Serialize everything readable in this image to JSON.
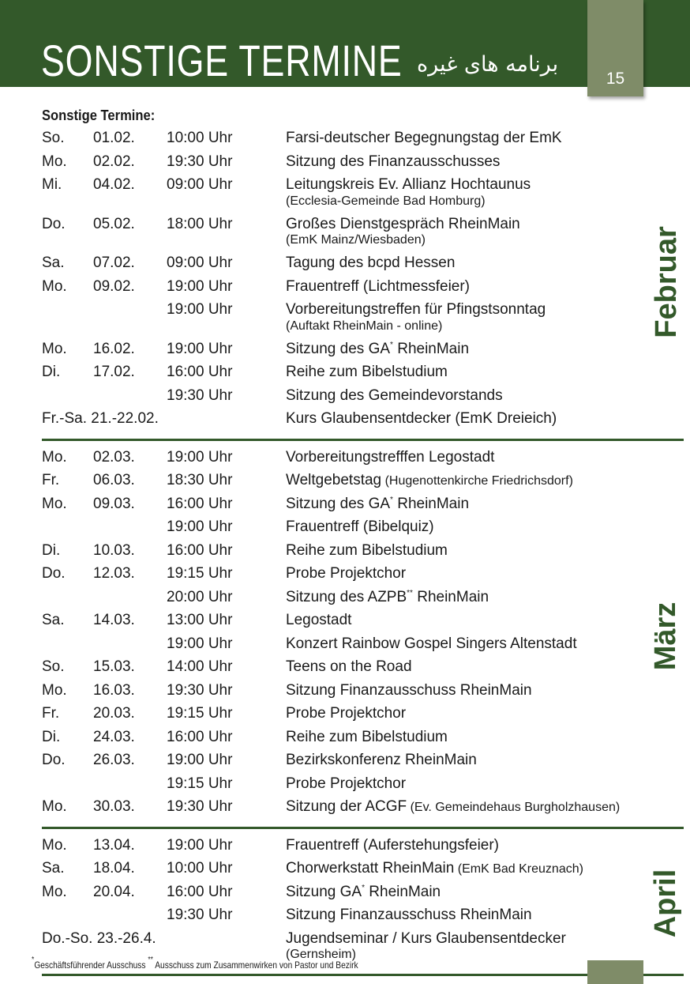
{
  "header": {
    "title": "SONSTIGE TERMINE",
    "title_farsi": "برنامه های غیره",
    "page_number": "15"
  },
  "subtitle": "Sonstige Termine:",
  "sections": [
    {
      "month": "Februar",
      "rows": [
        {
          "day": "So.",
          "date": "01.02.",
          "time": "10:00 Uhr",
          "event": "Farsi-deutscher Begegnungstag der EmK"
        },
        {
          "day": "Mo.",
          "date": "02.02.",
          "time": "19:30 Uhr",
          "event": "Sitzung des Finanzausschusses"
        },
        {
          "day": "Mi.",
          "date": "04.02.",
          "time": "09:00 Uhr",
          "event": "Leitungskreis Ev. Allianz Hochtaunus",
          "sub": "(Ecclesia-Gemeinde Bad Homburg)"
        },
        {
          "day": "Do.",
          "date": "05.02.",
          "time": "18:00 Uhr",
          "event": "Großes Dienstgespräch RheinMain",
          "sub": "(EmK Mainz/Wiesbaden)"
        },
        {
          "day": "Sa.",
          "date": "07.02.",
          "time": "09:00 Uhr",
          "event": "Tagung des bcpd Hessen"
        },
        {
          "day": "Mo.",
          "date": "09.02.",
          "time": "19:00 Uhr",
          "event": "Frauentreff (Lichtmessfeier)"
        },
        {
          "day": "",
          "date": "",
          "time": "19:00 Uhr",
          "event": "Vorbereitungstreffen für Pfingstsonntag",
          "sub": "(Auftakt RheinMain - online)"
        },
        {
          "day": "Mo.",
          "date": "16.02.",
          "time": "19:00 Uhr",
          "event": "Sitzung des GA",
          "sup": "*",
          "event_rest": " RheinMain"
        },
        {
          "day": "Di.",
          "date": "17.02.",
          "time": "16:00 Uhr",
          "event": "Reihe zum Bibelstudium"
        },
        {
          "day": "",
          "date": "",
          "time": "19:30 Uhr",
          "event": "Sitzung des Gemeindevorstands"
        },
        {
          "day": "Fr.-Sa. 21.-22.02.",
          "date": "",
          "time": "",
          "event": "Kurs Glaubensentdecker (EmK Dreieich)"
        }
      ]
    },
    {
      "month": "März",
      "rows": [
        {
          "day": "Mo.",
          "date": "02.03.",
          "time": "19:00 Uhr",
          "event": "Vorbereitungstrefffen Legostadt"
        },
        {
          "day": "Fr.",
          "date": "06.03.",
          "time": "18:30 Uhr",
          "event": "Weltgebetstag",
          "note": " (Hugenottenkirche Friedrichsdorf)"
        },
        {
          "day": "Mo.",
          "date": "09.03.",
          "time": "16:00 Uhr",
          "event": "Sitzung des GA",
          "sup": "*",
          "event_rest": " RheinMain"
        },
        {
          "day": "",
          "date": "",
          "time": "19:00 Uhr",
          "event": "Frauentreff (Bibelquiz)"
        },
        {
          "day": "Di.",
          "date": "10.03.",
          "time": "16:00 Uhr",
          "event": "Reihe zum Bibelstudium"
        },
        {
          "day": "Do.",
          "date": "12.03.",
          "time": "19:15 Uhr",
          "event": "Probe Projektchor"
        },
        {
          "day": "",
          "date": "",
          "time": "20:00 Uhr",
          "event": "Sitzung des AZPB",
          "sup": "**",
          "event_rest": " RheinMain"
        },
        {
          "day": "Sa.",
          "date": "14.03.",
          "time": "13:00 Uhr",
          "event": "Legostadt"
        },
        {
          "day": "",
          "date": "",
          "time": "19:00 Uhr",
          "event": "Konzert Rainbow Gospel Singers Altenstadt"
        },
        {
          "day": "So.",
          "date": "15.03.",
          "time": "14:00 Uhr",
          "event": "Teens on the Road"
        },
        {
          "day": "Mo.",
          "date": "16.03.",
          "time": "19:30 Uhr",
          "event": "Sitzung Finanzausschuss RheinMain"
        },
        {
          "day": "Fr.",
          "date": "20.03.",
          "time": "19:15 Uhr",
          "event": "Probe Projektchor"
        },
        {
          "day": "Di.",
          "date": "24.03.",
          "time": "16:00 Uhr",
          "event": "Reihe zum Bibelstudium"
        },
        {
          "day": "Do.",
          "date": "26.03.",
          "time": "19:00 Uhr",
          "event": "Bezirkskonferenz RheinMain"
        },
        {
          "day": "",
          "date": "",
          "time": "19:15 Uhr",
          "event": "Probe Projektchor"
        },
        {
          "day": "Mo.",
          "date": "30.03.",
          "time": "19:30 Uhr",
          "event": "Sitzung der ACGF",
          "note": " (Ev. Gemeindehaus Burgholzhausen)"
        }
      ]
    },
    {
      "month": "April",
      "rows": [
        {
          "day": "Mo.",
          "date": "13.04.",
          "time": "19:00 Uhr",
          "event": "Frauentreff (Auferstehungsfeier)"
        },
        {
          "day": "Sa.",
          "date": "18.04.",
          "time": "10:00 Uhr",
          "event": "Chorwerkstatt RheinMain",
          "note": " (EmK Bad Kreuznach)"
        },
        {
          "day": "Mo.",
          "date": "20.04.",
          "time": "16:00 Uhr",
          "event": "Sitzung GA",
          "sup": "*",
          "event_rest": " RheinMain"
        },
        {
          "day": "",
          "date": "",
          "time": "19:30 Uhr",
          "event": "Sitzung Finanzausschuss RheinMain"
        },
        {
          "day": "Do.-So. 23.-26.4.",
          "date": "",
          "time": "",
          "event": "Jugendseminar / Kurs Glaubensentdecker",
          "sub": "(Gernsheim)"
        }
      ]
    }
  ],
  "footnote": {
    "mark1": "*",
    "text1": "Geschäftsführender Ausschuss ",
    "mark2": "**",
    "text2": " Ausschuss zum Zusammenwirken von Pastor und Bezirk"
  },
  "colors": {
    "green": "#33592a",
    "tab": "#7f8c68"
  }
}
